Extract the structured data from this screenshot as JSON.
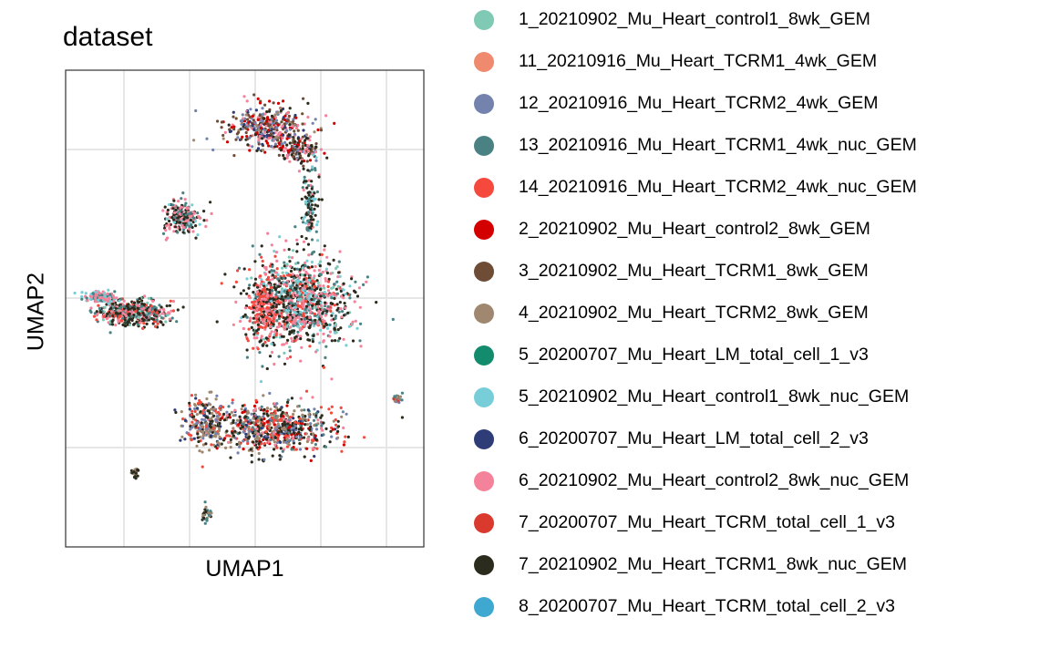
{
  "chart_data": {
    "type": "scatter",
    "title": "dataset",
    "xlabel": "UMAP1",
    "ylabel": "UMAP2",
    "grid": true,
    "legend_position": "right",
    "series": [
      {
        "name": "1_20210902_Mu_Heart_control1_8wk_GEM",
        "color": "#7FC9B5"
      },
      {
        "name": "11_20210916_Mu_Heart_TCRM1_4wk_GEM",
        "color": "#EF8A6E"
      },
      {
        "name": "12_20210916_Mu_Heart_TCRM2_4wk_GEM",
        "color": "#7482AE"
      },
      {
        "name": "13_20210916_Mu_Heart_TCRM1_4wk_nuc_GEM",
        "color": "#4A8284"
      },
      {
        "name": "14_20210916_Mu_Heart_TCRM2_4wk_nuc_GEM",
        "color": "#F5493D"
      },
      {
        "name": "2_20210902_Mu_Heart_control2_8wk_GEM",
        "color": "#D40000"
      },
      {
        "name": "3_20210902_Mu_Heart_TCRM1_8wk_GEM",
        "color": "#6E4C36"
      },
      {
        "name": "4_20210902_Mu_Heart_TCRM2_8wk_GEM",
        "color": "#A08870"
      },
      {
        "name": "5_20200707_Mu_Heart_LM_total_cell_1_v3",
        "color": "#138C6E"
      },
      {
        "name": "5_20210902_Mu_Heart_control1_8wk_nuc_GEM",
        "color": "#78CED8"
      },
      {
        "name": "6_20200707_Mu_Heart_LM_total_cell_2_v3",
        "color": "#2E3C78"
      },
      {
        "name": "6_20210902_Mu_Heart_control2_8wk_nuc_GEM",
        "color": "#F4829A"
      },
      {
        "name": "7_20200707_Mu_Heart_TCRM_total_cell_1_v3",
        "color": "#DA3A2E"
      },
      {
        "name": "7_20210902_Mu_Heart_TCRM1_8wk_nuc_GEM",
        "color": "#2C2C1E"
      },
      {
        "name": "8_20200707_Mu_Heart_TCRM_total_cell_2_v3",
        "color": "#3FA8D0"
      }
    ]
  }
}
